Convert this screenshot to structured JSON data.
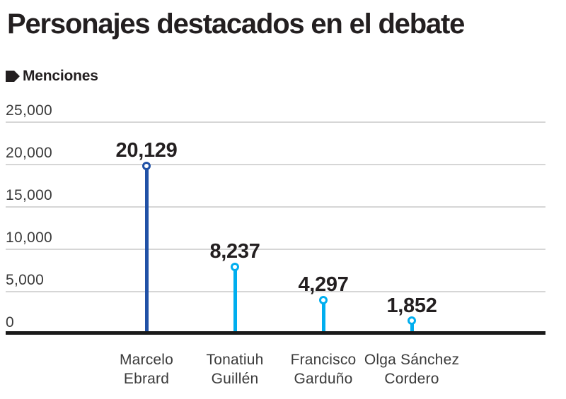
{
  "title": "Personajes destacados en el debate",
  "legend": {
    "label": "Menciones",
    "marker_color": "#231f20"
  },
  "colors": {
    "highlight_blue": "#2151a6",
    "cyan": "#00aeef",
    "axis_black": "#1a1a1a",
    "gridline_gray": "#d6d6d6",
    "text_dark": "#231f20",
    "text_gray": "#3a3a3a"
  },
  "chart_data": {
    "type": "lollipop",
    "title": "Personajes destacados en el debate",
    "series_name": "Menciones",
    "categories": [
      [
        "Marcelo",
        "Ebrard"
      ],
      [
        "Tonatiuh",
        "Guillén"
      ],
      [
        "Francisco",
        "Garduño"
      ],
      [
        "Olga Sánchez",
        "Cordero"
      ]
    ],
    "values": [
      20129,
      8237,
      4297,
      1852
    ],
    "value_labels": [
      "20,129",
      "8,237",
      "4,297",
      "1,852"
    ],
    "point_colors": [
      "#2151a6",
      "#00aeef",
      "#00aeef",
      "#00aeef"
    ],
    "yticks": [
      25000,
      20000,
      15000,
      10000,
      5000,
      0
    ],
    "ytick_labels": [
      "25,000",
      "20,000",
      "15,000",
      "10,000",
      "5,000",
      "0"
    ],
    "ylim": [
      0,
      25000
    ],
    "grid": true,
    "legend_position": "top-left"
  }
}
